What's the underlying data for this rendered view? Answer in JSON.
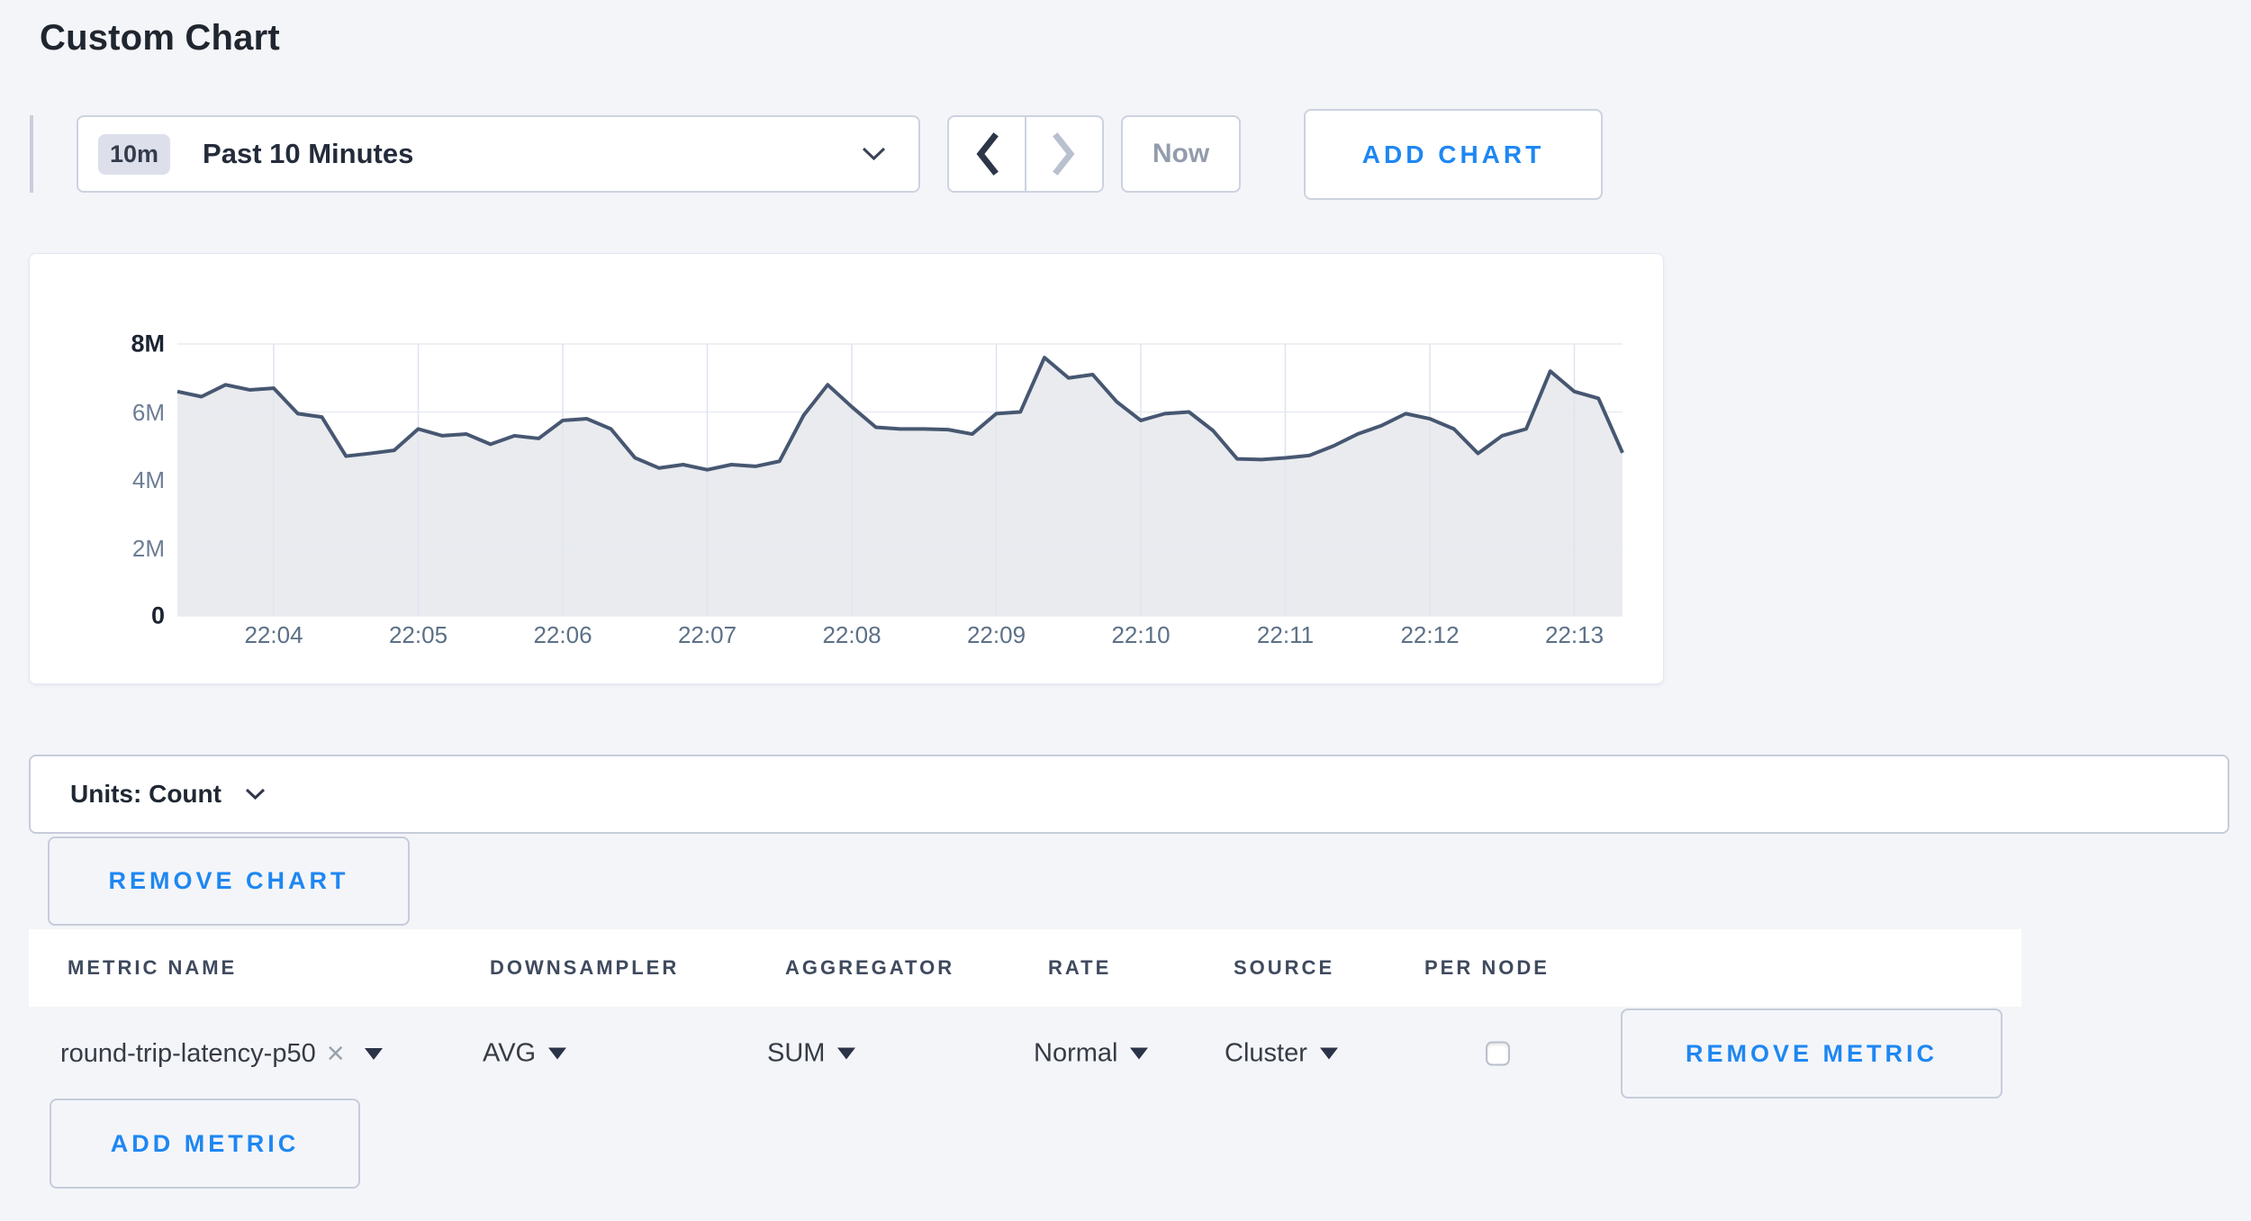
{
  "page": {
    "title": "Custom Chart"
  },
  "toolbar": {
    "time_range": {
      "badge": "10m",
      "label": "Past 10 Minutes"
    },
    "now_label": "Now",
    "add_chart_label": "ADD CHART"
  },
  "icons": {
    "time_range_caret": "chevron-down",
    "prev": "chevron-left",
    "next": "chevron-right",
    "units_caret": "chevron-down",
    "metric_remove_tag": "×",
    "select_arrow": "triangle-down"
  },
  "colors": {
    "accent_blue": "#1e87f2",
    "line": "#475771",
    "fill": "#e9ebef",
    "vgrid": "#dfe4ef",
    "hgrid": "#e7ebf2"
  },
  "chart_data": {
    "type": "area",
    "series_metric": "round-trip-latency-p50",
    "unit": "Count",
    "grid": true,
    "ylim_m": [
      0,
      8
    ],
    "y_ticks": [
      "0",
      "2M",
      "4M",
      "6M",
      "8M"
    ],
    "y_tick_values_m": [
      0,
      2,
      4,
      6,
      8
    ],
    "x_tick_labels": [
      "22:04",
      "22:05",
      "22:06",
      "22:07",
      "22:08",
      "22:09",
      "22:10",
      "22:11",
      "22:12",
      "22:13"
    ],
    "x_tick_indices": [
      4,
      10,
      16,
      22,
      28,
      34,
      40,
      46,
      52,
      58
    ],
    "x_start_time": "22:03:20",
    "point_interval_seconds": 10,
    "values_millions": [
      6.6,
      6.45,
      6.8,
      6.65,
      6.7,
      5.95,
      5.85,
      4.7,
      4.78,
      4.87,
      5.5,
      5.3,
      5.35,
      5.05,
      5.3,
      5.22,
      5.75,
      5.8,
      5.5,
      4.65,
      4.35,
      4.45,
      4.3,
      4.45,
      4.4,
      4.55,
      5.9,
      6.8,
      6.15,
      5.55,
      5.5,
      5.5,
      5.48,
      5.35,
      5.95,
      6.0,
      7.6,
      7.0,
      7.1,
      6.3,
      5.75,
      5.95,
      6.0,
      5.45,
      4.62,
      4.6,
      4.65,
      4.72,
      5.0,
      5.35,
      5.6,
      5.95,
      5.8,
      5.5,
      4.78,
      5.3,
      5.5,
      7.2,
      6.6,
      6.4,
      4.8
    ]
  },
  "units_bar": {
    "label": "Units: Count"
  },
  "chart_actions": {
    "remove_chart_label": "REMOVE CHART"
  },
  "metrics_table": {
    "columns": [
      "METRIC NAME",
      "DOWNSAMPLER",
      "AGGREGATOR",
      "RATE",
      "SOURCE",
      "PER NODE"
    ],
    "row": {
      "metric_name": "round-trip-latency-p50",
      "downsampler": "AVG",
      "aggregator": "SUM",
      "rate": "Normal",
      "source": "Cluster",
      "per_node_checked": false,
      "remove_label": "REMOVE METRIC"
    },
    "add_metric_label": "ADD METRIC"
  }
}
